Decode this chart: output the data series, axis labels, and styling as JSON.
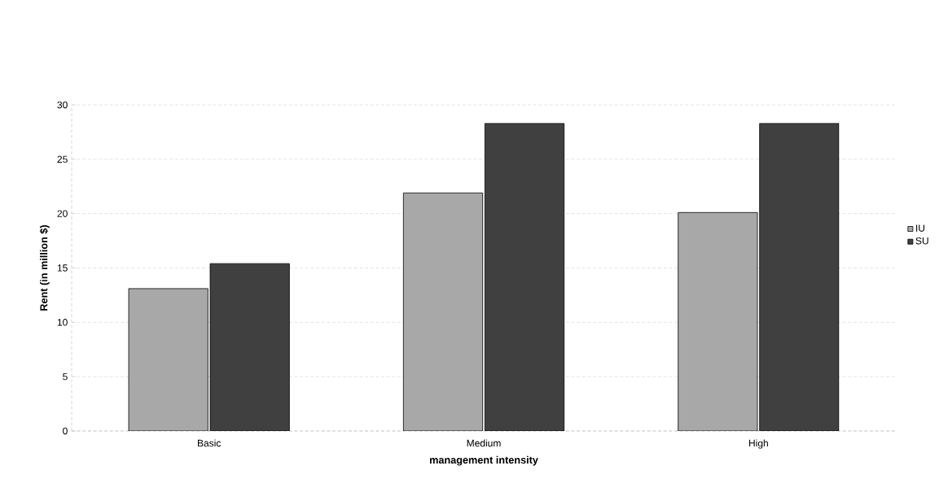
{
  "chart_data": {
    "type": "bar",
    "xlabel": "management intensity",
    "ylabel": "Rent (in million $)",
    "categories": [
      "Basic",
      "Medium",
      "High"
    ],
    "series": [
      {
        "name": "IU",
        "color": "#a8a8a8",
        "values": [
          13.1,
          21.9,
          20.1
        ]
      },
      {
        "name": "SU",
        "color": "#404040",
        "values": [
          15.4,
          28.3,
          28.3
        ]
      }
    ],
    "ylim": [
      0,
      30
    ],
    "yticks": [
      0,
      5,
      10,
      15,
      20,
      25,
      30
    ],
    "grid": "y",
    "legend": "right"
  }
}
